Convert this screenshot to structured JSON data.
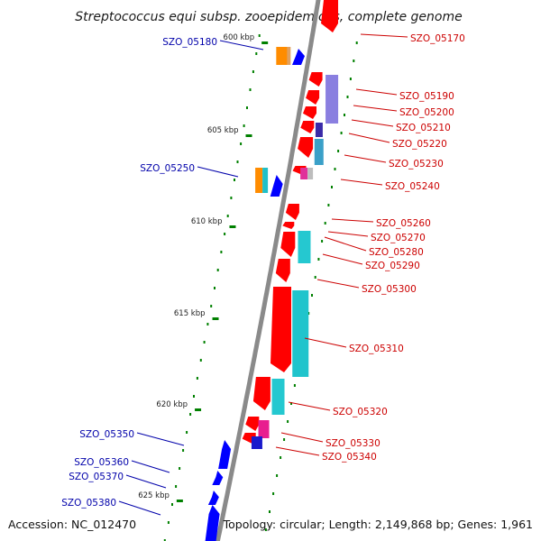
{
  "title": "Streptococcus equi subsp. zooepidemicus, complete genome",
  "footer": {
    "accession": "Accession: NC_012470",
    "topology": "Topology: circular; Length: 2,149,868 bp; Genes: 1,961"
  },
  "colors": {
    "forward_gene": "#ff0000",
    "reverse_gene": "#0000ff",
    "forward_label": "#cc0000",
    "reverse_label": "#0000aa",
    "backbone": "#8a8a8a",
    "tick": "#008000"
  },
  "ticks": [
    {
      "label": "600 kbp"
    },
    {
      "label": "605 kbp"
    },
    {
      "label": "610 kbp"
    },
    {
      "label": "615 kbp"
    },
    {
      "label": "620 kbp"
    },
    {
      "label": "625 kbp"
    }
  ],
  "forward_labels": [
    {
      "text": "SZO_05170"
    },
    {
      "text": "SZO_05190"
    },
    {
      "text": "SZO_05200"
    },
    {
      "text": "SZO_05210"
    },
    {
      "text": "SZO_05220"
    },
    {
      "text": "SZO_05230"
    },
    {
      "text": "SZO_05240"
    },
    {
      "text": "SZO_05260"
    },
    {
      "text": "SZO_05270"
    },
    {
      "text": "SZO_05280"
    },
    {
      "text": "SZO_05290"
    },
    {
      "text": "SZO_05300"
    },
    {
      "text": "SZO_05310"
    },
    {
      "text": "SZO_05320"
    },
    {
      "text": "SZO_05330"
    },
    {
      "text": "SZO_05340"
    }
  ],
  "reverse_labels": [
    {
      "text": "SZO_05180"
    },
    {
      "text": "SZO_05250"
    },
    {
      "text": "SZO_05350"
    },
    {
      "text": "SZO_05360"
    },
    {
      "text": "SZO_05370"
    },
    {
      "text": "SZO_05380"
    }
  ]
}
